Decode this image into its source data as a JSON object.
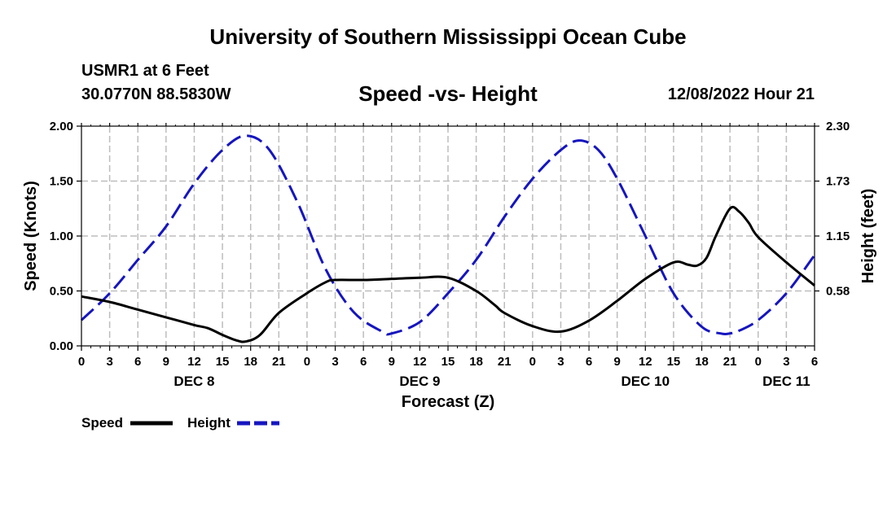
{
  "page": {
    "title_top": "University of Southern Mississippi Ocean Cube",
    "title_bottom": "University of Southern Mississippi Ocean Cube",
    "station": "USMR1 at 6 Feet",
    "coords": "30.0770N  88.5830W",
    "subtitle": "Speed -vs- Height",
    "datetime": "12/08/2022 Hour 21"
  },
  "chart_data": {
    "type": "line",
    "title": "Speed -vs- Height",
    "xlabel": "Forecast (Z)",
    "ylabel_left": "Speed (Knots)",
    "ylabel_right": "Height (feet)",
    "xlim": [
      0,
      78
    ],
    "ylim_left": [
      0,
      2
    ],
    "ylim_right": [
      0,
      2.3
    ],
    "grid": true,
    "x_tick_values": [
      0,
      3,
      6,
      9,
      12,
      15,
      18,
      21,
      24,
      27,
      30,
      33,
      36,
      39,
      42,
      45,
      48,
      51,
      54,
      57,
      60,
      63,
      66,
      69,
      72,
      75,
      78
    ],
    "x_tick_labels": [
      "0",
      "3",
      "6",
      "9",
      "12",
      "15",
      "18",
      "21",
      "0",
      "3",
      "6",
      "9",
      "12",
      "15",
      "18",
      "21",
      "0",
      "3",
      "6",
      "9",
      "12",
      "15",
      "18",
      "21",
      "0",
      "3",
      "6"
    ],
    "y_left_ticks": [
      0,
      0.5,
      1,
      1.5,
      2
    ],
    "y_left_tick_labels": [
      "0.00",
      "0.50",
      "1.00",
      "1.50",
      "2.00"
    ],
    "y_right_ticks": [
      0.575,
      1.15,
      1.725,
      2.3
    ],
    "y_right_tick_labels": [
      "0.58",
      "1.15",
      "1.73",
      "2.30"
    ],
    "day_labels": [
      {
        "x": 12,
        "label": "DEC 8"
      },
      {
        "x": 36,
        "label": "DEC 9"
      },
      {
        "x": 60,
        "label": "DEC 10"
      },
      {
        "x": 75,
        "label": "DEC 11"
      }
    ],
    "legend": [
      {
        "name": "Speed",
        "color": "#000000",
        "style": "solid"
      },
      {
        "name": "Height",
        "color": "#1515c0",
        "style": "dashed"
      }
    ],
    "series": [
      {
        "name": "Speed",
        "axis": "left",
        "color": "#000000",
        "style": "solid",
        "x": [
          0,
          3,
          6,
          9,
          12,
          13.5,
          15,
          16.5,
          17.5,
          19,
          21,
          24,
          26,
          27,
          30,
          33,
          36,
          39,
          42,
          44,
          45,
          48,
          51,
          54,
          57,
          60,
          63,
          64.5,
          65.5,
          66.5,
          67.5,
          69,
          70,
          71,
          72,
          75,
          78
        ],
        "values": [
          0.45,
          0.4,
          0.33,
          0.26,
          0.19,
          0.16,
          0.1,
          0.05,
          0.04,
          0.1,
          0.3,
          0.48,
          0.58,
          0.6,
          0.6,
          0.61,
          0.62,
          0.62,
          0.5,
          0.37,
          0.3,
          0.18,
          0.13,
          0.23,
          0.41,
          0.61,
          0.76,
          0.74,
          0.73,
          0.8,
          1.0,
          1.25,
          1.22,
          1.12,
          0.99,
          0.76,
          0.55
        ]
      },
      {
        "name": "Height",
        "axis": "right",
        "color": "#1515c0",
        "style": "dashed",
        "x": [
          0,
          3,
          6,
          9,
          12,
          15,
          17.5,
          20,
          23,
          26,
          29,
          32,
          33,
          36,
          39,
          42,
          45,
          48,
          51,
          53,
          55,
          57,
          60,
          63,
          66,
          68,
          69,
          70,
          72,
          75,
          78
        ],
        "values": [
          0.27,
          0.55,
          0.9,
          1.25,
          1.7,
          2.05,
          2.2,
          2.05,
          1.5,
          0.8,
          0.35,
          0.15,
          0.13,
          0.25,
          0.55,
          0.9,
          1.35,
          1.75,
          2.05,
          2.15,
          2.05,
          1.75,
          1.15,
          0.55,
          0.2,
          0.13,
          0.13,
          0.16,
          0.27,
          0.55,
          0.95
        ]
      }
    ]
  }
}
